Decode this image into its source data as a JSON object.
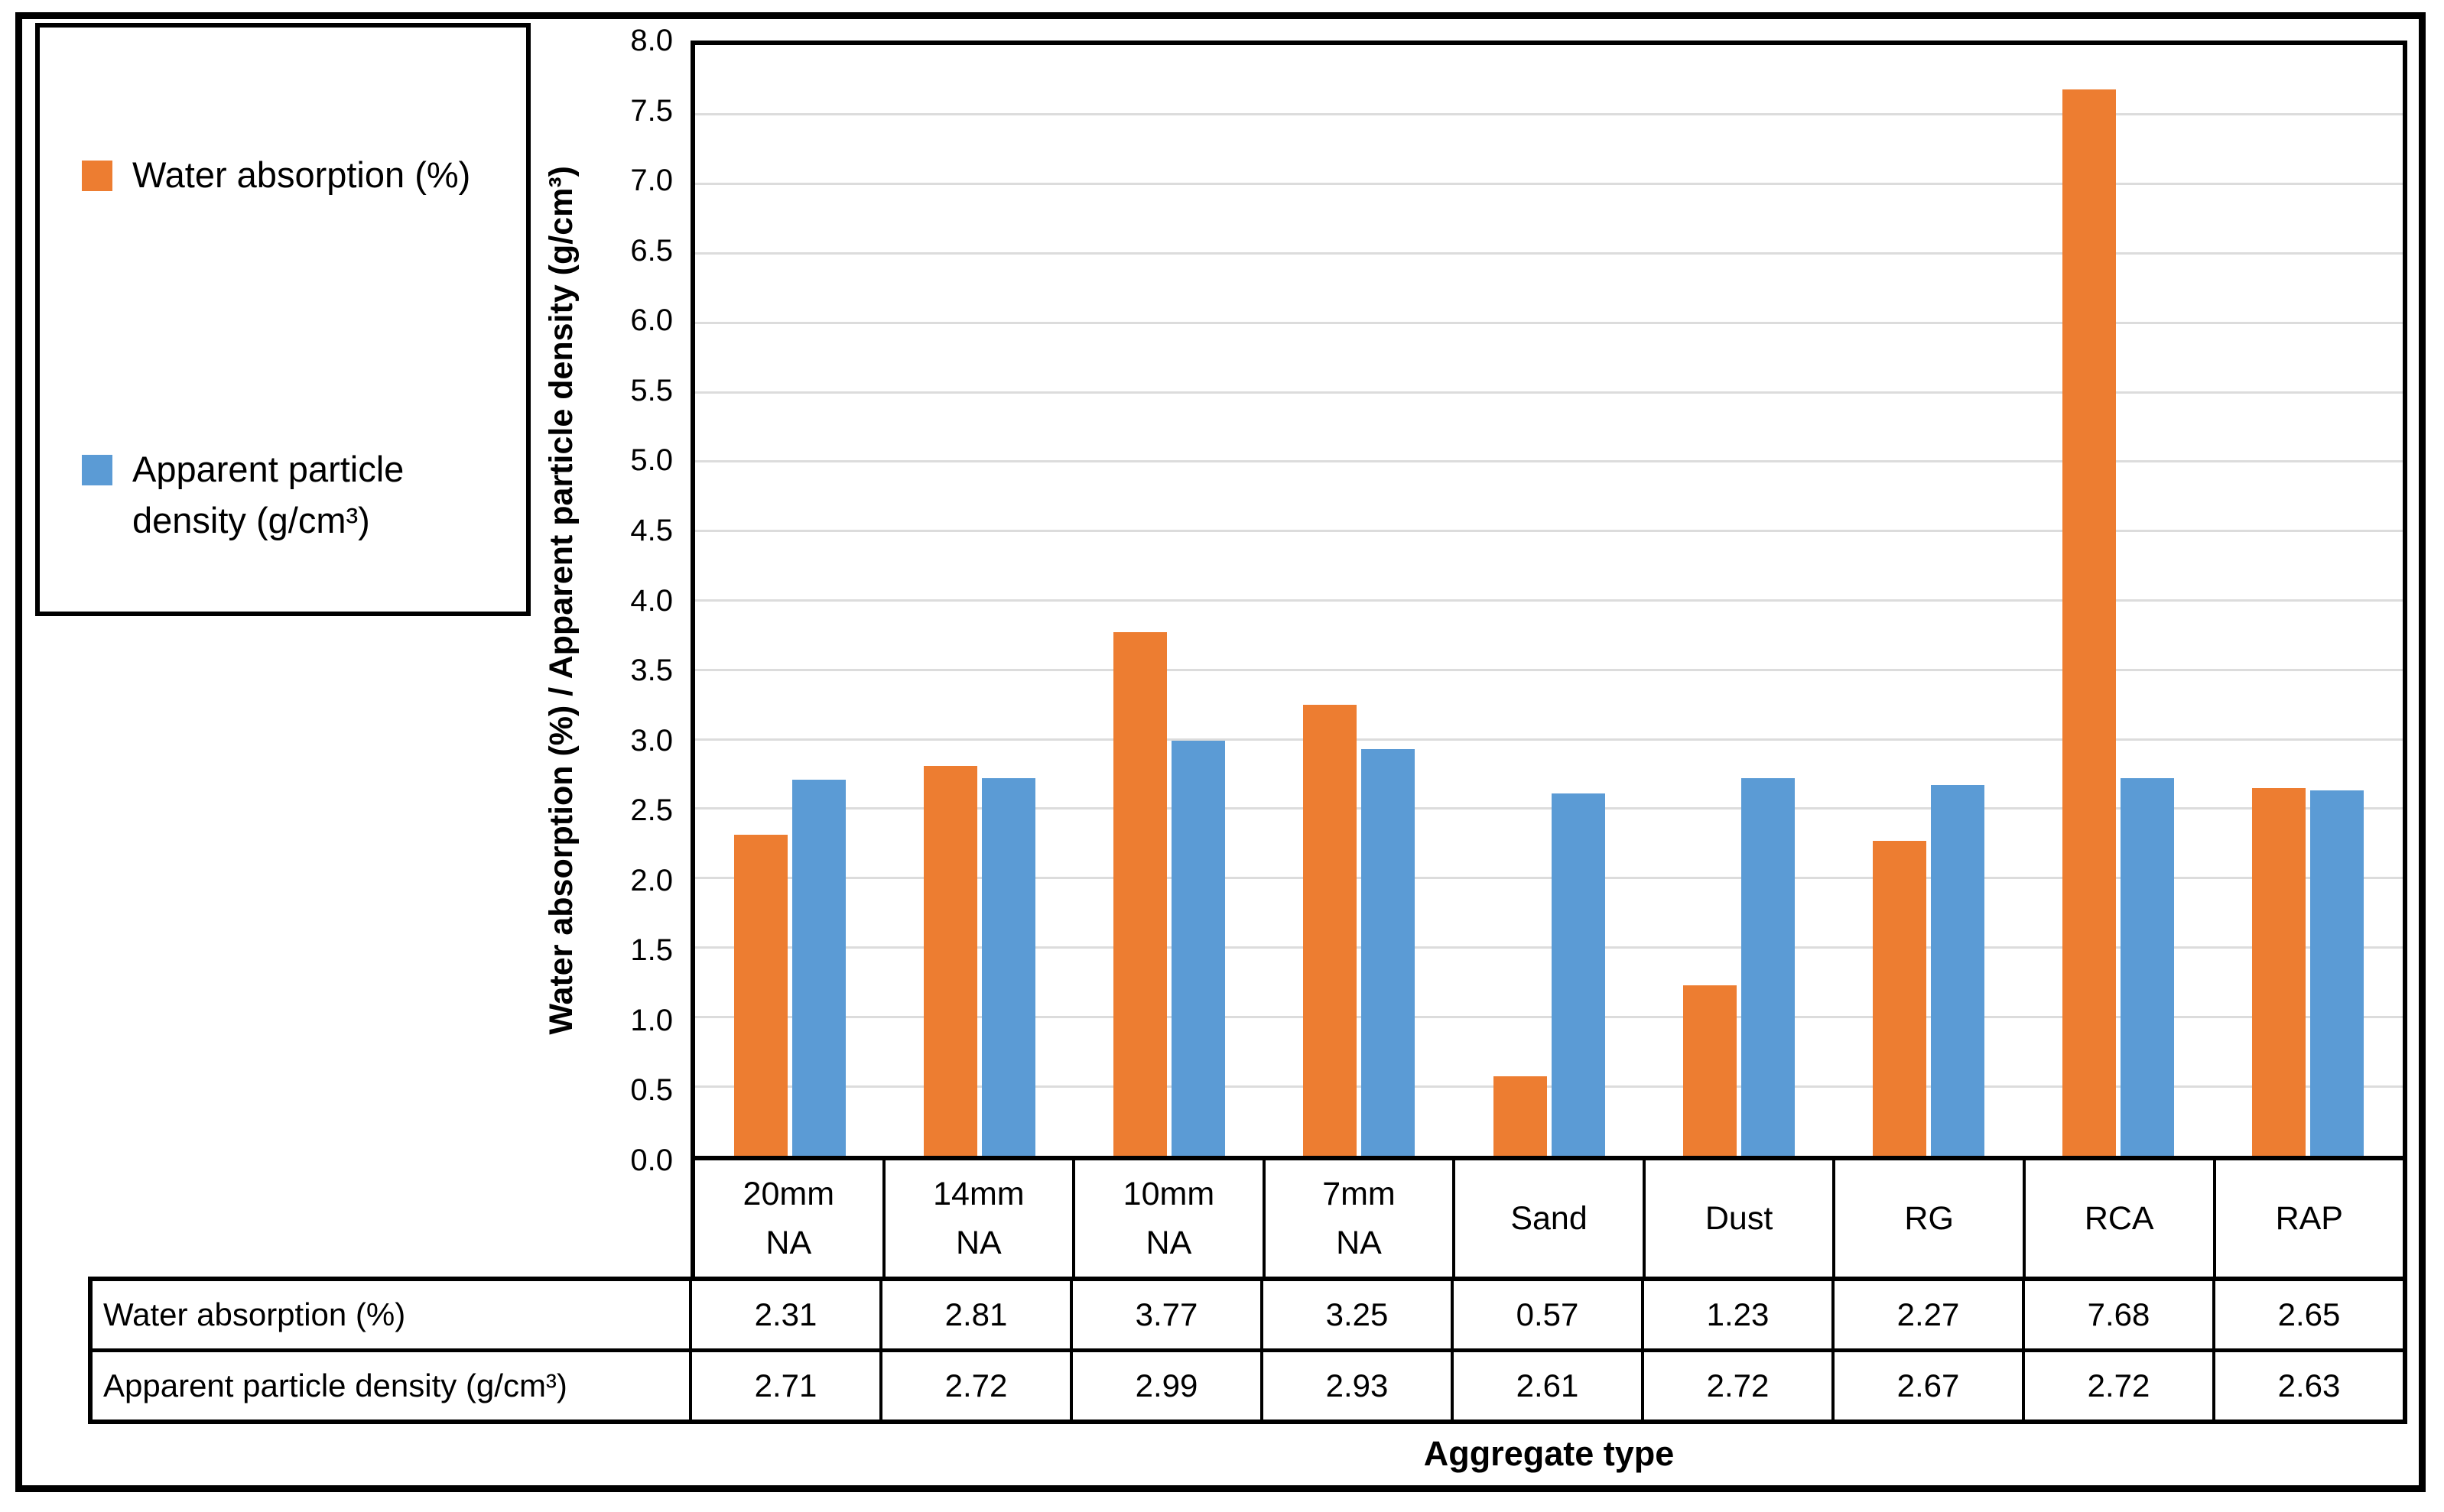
{
  "legend": {
    "items": [
      {
        "label": "Water absorption (%)",
        "color": "#ED7D31"
      },
      {
        "label": "Apparent particle\ndensity (g/cm³)",
        "color": "#5B9BD5"
      }
    ]
  },
  "chart_data": {
    "type": "bar",
    "title": "",
    "categories": [
      "20mm\nNA",
      "14mm\nNA",
      "10mm\nNA",
      "7mm\nNA",
      "Sand",
      "Dust",
      "RG",
      "RCA",
      "RAP"
    ],
    "series": [
      {
        "name": "Water absorption (%)",
        "color": "#ED7D31",
        "values": [
          2.31,
          2.81,
          3.77,
          3.25,
          0.57,
          1.23,
          2.27,
          7.68,
          2.65
        ]
      },
      {
        "name": "Apparent particle density (g/cm³)",
        "color": "#5B9BD5",
        "values": [
          2.71,
          2.72,
          2.99,
          2.93,
          2.61,
          2.72,
          2.67,
          2.72,
          2.63
        ]
      }
    ],
    "ylabel": "Water absorption (%) / Apparent particle density (g/cm³)",
    "xlabel": "Aggregate type",
    "ylim": [
      0.0,
      8.0
    ],
    "yticks": [
      8.0,
      7.5,
      7.0,
      6.5,
      6.0,
      5.5,
      5.0,
      4.5,
      4.0,
      3.5,
      3.0,
      2.5,
      2.0,
      1.5,
      1.0,
      0.5,
      0.0
    ],
    "grid": true,
    "legend_position": "top-left"
  },
  "table": {
    "rows": [
      {
        "header": "Water absorption (%)",
        "values": [
          "2.31",
          "2.81",
          "3.77",
          "3.25",
          "0.57",
          "1.23",
          "2.27",
          "7.68",
          "2.65"
        ]
      },
      {
        "header": "Apparent particle density (g/cm³)",
        "values": [
          "2.71",
          "2.72",
          "2.99",
          "2.93",
          "2.61",
          "2.72",
          "2.67",
          "2.72",
          "2.63"
        ]
      }
    ]
  },
  "colors": {
    "series1": "#ED7D31",
    "series2": "#5B9BD5",
    "gridline": "#DCDCDC",
    "border": "#000000"
  }
}
